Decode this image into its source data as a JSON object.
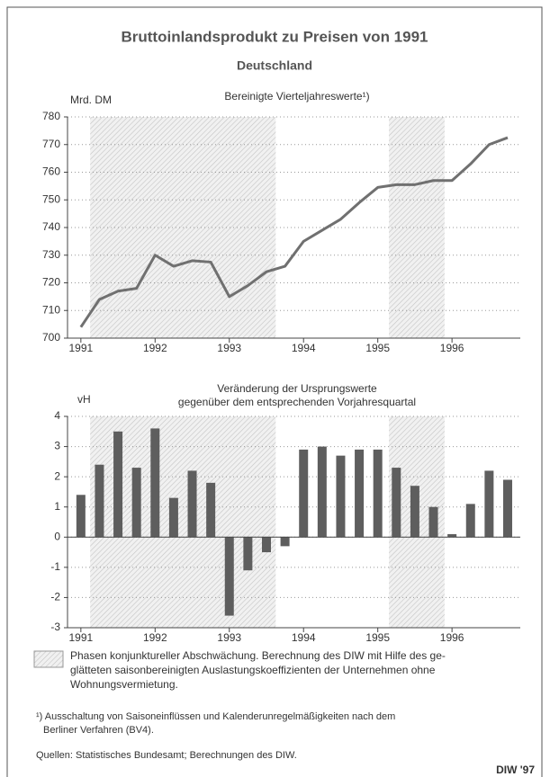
{
  "title": "Bruttoinlandsprodukt zu Preisen von 1991",
  "subtitle": "Deutschland",
  "phases": [
    {
      "start": 1991.125,
      "end": 1993.625
    },
    {
      "start": 1995.15,
      "end": 1995.9
    }
  ],
  "legend_note": [
    "Phasen konjunktureller Abschwächung. Berechnung des DIW mit Hilfe des ge-",
    "glätteten saisonbereinigten Auslastungskoeffizienten der Unternehmen ohne",
    "Wohnungsvermietung."
  ],
  "footnote": [
    "¹) Ausschaltung von Saisoneinflüssen und Kalenderunregelmäßigkeiten nach dem",
    "Berliner Verfahren (BV4)."
  ],
  "source": "Quellen: Statistisches Bundesamt; Berechnungen des DIW.",
  "credit": "DIW '97",
  "chart_data": [
    {
      "type": "line",
      "title": "Bereinigte Vierteljahreswerte¹)",
      "y_label": "Mrd. DM",
      "color": "#707070",
      "grid": true,
      "x": [
        1991,
        1991.25,
        1991.5,
        1991.75,
        1992,
        1992.25,
        1992.5,
        1992.75,
        1993,
        1993.25,
        1993.5,
        1993.75,
        1994,
        1994.25,
        1994.5,
        1994.75,
        1995,
        1995.25,
        1995.5,
        1995.75,
        1996,
        1996.25,
        1996.5,
        1996.75
      ],
      "values": [
        704,
        714,
        717,
        718,
        730,
        726,
        728,
        727.5,
        715,
        719,
        724,
        726,
        735,
        739,
        743,
        749,
        754.5,
        755.5,
        755.5,
        757,
        757,
        763,
        770,
        772.5
      ],
      "xlim": [
        1990.82,
        1996.92
      ],
      "xticks": [
        1991,
        1992,
        1993,
        1994,
        1995,
        1996
      ],
      "ylim": [
        700,
        780
      ],
      "yticks": [
        700,
        710,
        720,
        730,
        740,
        750,
        760,
        770,
        780
      ]
    },
    {
      "type": "bar",
      "title": [
        "Veränderung der Ursprungswerte",
        "gegenüber dem entsprechenden Vorjahresquartal"
      ],
      "y_label": "vH",
      "color": "#5e5e5e",
      "grid": true,
      "x": [
        1991,
        1991.25,
        1991.5,
        1991.75,
        1992,
        1992.25,
        1992.5,
        1992.75,
        1993,
        1993.25,
        1993.5,
        1993.75,
        1994,
        1994.25,
        1994.5,
        1994.75,
        1995,
        1995.25,
        1995.5,
        1995.75,
        1996,
        1996.25,
        1996.5,
        1996.75
      ],
      "values": [
        1.4,
        2.4,
        3.5,
        2.3,
        3.6,
        1.3,
        2.2,
        1.8,
        -2.6,
        -1.1,
        -0.5,
        -0.3,
        2.9,
        3.0,
        2.7,
        2.9,
        2.9,
        2.3,
        1.7,
        1.0,
        0.1,
        1.1,
        2.2,
        1.9
      ],
      "xlim": [
        1990.82,
        1996.92
      ],
      "xticks": [
        1991,
        1992,
        1993,
        1994,
        1995,
        1996
      ],
      "ylim": [
        -3,
        4
      ],
      "yticks": [
        -3,
        -2,
        -1,
        0,
        1,
        2,
        3,
        4
      ]
    }
  ]
}
